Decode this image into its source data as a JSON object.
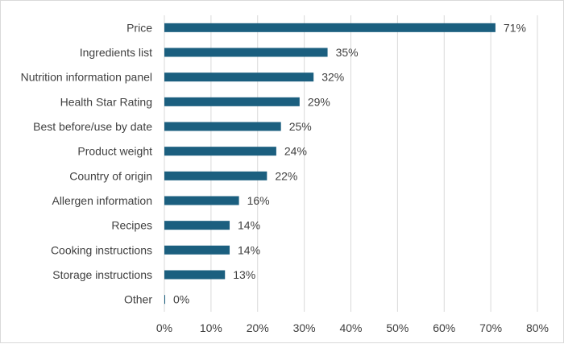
{
  "chart_data": {
    "type": "bar",
    "orientation": "horizontal",
    "categories": [
      "Price",
      "Ingredients list",
      "Nutrition information panel",
      "Health Star Rating",
      "Best before/use by date",
      "Product weight",
      "Country of origin",
      "Allergen information",
      "Recipes",
      "Cooking instructions",
      "Storage instructions",
      "Other"
    ],
    "values": [
      71,
      35,
      32,
      29,
      25,
      24,
      22,
      16,
      14,
      14,
      13,
      0
    ],
    "data_labels": [
      "71%",
      "35%",
      "32%",
      "29%",
      "25%",
      "24%",
      "22%",
      "16%",
      "14%",
      "14%",
      "13%",
      "0%"
    ],
    "title": "",
    "xlabel": "",
    "ylabel": "",
    "xlim": [
      0,
      80
    ],
    "x_ticks": [
      0,
      10,
      20,
      30,
      40,
      50,
      60,
      70,
      80
    ],
    "x_tick_labels": [
      "0%",
      "10%",
      "20%",
      "30%",
      "40%",
      "50%",
      "60%",
      "70%",
      "80%"
    ],
    "grid": true,
    "legend": "none",
    "colors": {
      "bar": "#1b5f7f",
      "grid": "#d9d9d9",
      "text": "#404040"
    }
  }
}
